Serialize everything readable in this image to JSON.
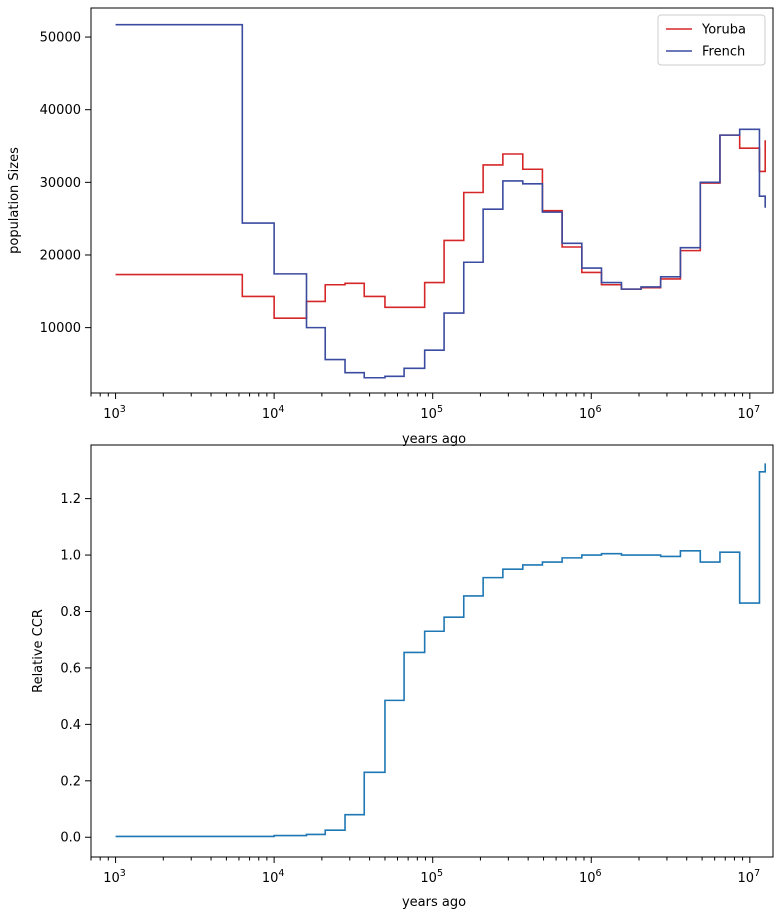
{
  "chart_data": [
    {
      "type": "line",
      "step": true,
      "xscale": "log",
      "xlabel": "years ago",
      "ylabel": "population Sizes",
      "xlim": [
        700,
        14000000
      ],
      "ylim": [
        1000,
        54000
      ],
      "xticks": [
        1000,
        10000,
        100000,
        1000000,
        10000000
      ],
      "xtick_labels": [
        {
          "base": "10",
          "exp": "3"
        },
        {
          "base": "10",
          "exp": "4"
        },
        {
          "base": "10",
          "exp": "5"
        },
        {
          "base": "10",
          "exp": "6"
        },
        {
          "base": "10",
          "exp": "7"
        }
      ],
      "yticks": [
        10000,
        20000,
        30000,
        40000,
        50000
      ],
      "ytick_labels": [
        "10000",
        "20000",
        "30000",
        "40000",
        "50000"
      ],
      "legend_position": "top-right",
      "series": [
        {
          "name": "Yoruba",
          "color": "#d62728",
          "x": [
            1000,
            6300,
            10000,
            16000,
            21000,
            28000,
            37000,
            50000,
            66000,
            89000,
            118000,
            157000,
            208000,
            277000,
            370000,
            492000,
            655000,
            872000,
            1160000,
            1550000,
            2060000,
            2740000,
            3650000,
            4870000,
            6480000,
            8630000,
            11500000,
            12500000
          ],
          "y": [
            17300,
            14300,
            11300,
            13600,
            15900,
            16100,
            14300,
            12800,
            12800,
            16200,
            22000,
            28600,
            32400,
            33900,
            31800,
            26100,
            21100,
            17600,
            15900,
            15300,
            15500,
            16700,
            20600,
            29900,
            36500,
            34700,
            31500,
            35800
          ]
        },
        {
          "name": "French",
          "color": "#3b4ba0",
          "x": [
            1000,
            6300,
            10000,
            16000,
            21000,
            28000,
            37000,
            50000,
            66000,
            89000,
            118000,
            157000,
            208000,
            277000,
            370000,
            492000,
            655000,
            872000,
            1160000,
            1550000,
            2060000,
            2740000,
            3650000,
            4870000,
            6480000,
            8630000,
            11500000,
            12500000
          ],
          "y": [
            51700,
            24400,
            17400,
            10000,
            5600,
            3800,
            3100,
            3300,
            4400,
            6900,
            12000,
            19000,
            26300,
            30200,
            29800,
            25900,
            21600,
            18200,
            16200,
            15300,
            15600,
            17000,
            21000,
            30000,
            36500,
            37300,
            28100,
            26500
          ]
        }
      ]
    },
    {
      "type": "line",
      "step": true,
      "xscale": "log",
      "xlabel": "years ago",
      "ylabel": "Relative CCR",
      "xlim": [
        700,
        14000000
      ],
      "ylim": [
        -0.07,
        1.39
      ],
      "xticks": [
        1000,
        10000,
        100000,
        1000000,
        10000000
      ],
      "xtick_labels": [
        {
          "base": "10",
          "exp": "3"
        },
        {
          "base": "10",
          "exp": "4"
        },
        {
          "base": "10",
          "exp": "5"
        },
        {
          "base": "10",
          "exp": "6"
        },
        {
          "base": "10",
          "exp": "7"
        }
      ],
      "yticks": [
        0.0,
        0.2,
        0.4,
        0.6,
        0.8,
        1.0,
        1.2
      ],
      "ytick_labels": [
        "0.0",
        "0.2",
        "0.4",
        "0.6",
        "0.8",
        "1.0",
        "1.2"
      ],
      "series": [
        {
          "color": "#1f77b4",
          "x": [
            1000,
            6300,
            10000,
            16000,
            21000,
            28000,
            37000,
            50000,
            66000,
            89000,
            118000,
            157000,
            208000,
            277000,
            370000,
            492000,
            655000,
            872000,
            1160000,
            1550000,
            2060000,
            2740000,
            3650000,
            4870000,
            6480000,
            8630000,
            11500000,
            12500000
          ],
          "y": [
            0.003,
            0.003,
            0.006,
            0.01,
            0.025,
            0.08,
            0.23,
            0.485,
            0.655,
            0.73,
            0.78,
            0.855,
            0.92,
            0.95,
            0.965,
            0.975,
            0.99,
            1.0,
            1.005,
            1.0,
            1.0,
            0.995,
            1.015,
            0.975,
            1.01,
            0.83,
            1.295,
            1.325
          ]
        }
      ]
    }
  ]
}
